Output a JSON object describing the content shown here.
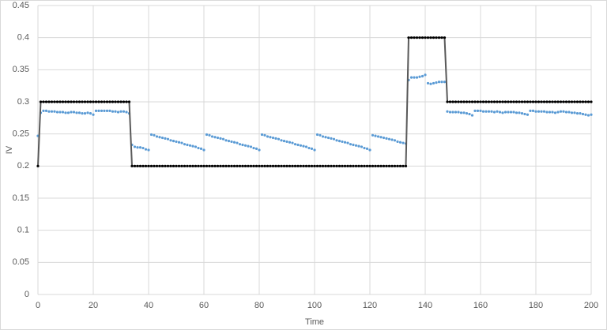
{
  "chart_data": {
    "type": "scatter-line",
    "x_label": "Time",
    "y_label": "IV",
    "xlim": [
      0,
      200
    ],
    "xticks": [
      0,
      20,
      40,
      60,
      80,
      100,
      120,
      140,
      160,
      180,
      200
    ],
    "ylim": [
      0,
      0.45
    ],
    "yticks": [
      0,
      0.05,
      0.1,
      0.15,
      0.2,
      0.25,
      0.3,
      0.35,
      0.4,
      0.45
    ],
    "grid": true,
    "x": [
      0,
      1,
      2,
      3,
      4,
      5,
      6,
      7,
      8,
      9,
      10,
      11,
      12,
      13,
      14,
      15,
      16,
      17,
      18,
      19,
      20,
      21,
      22,
      23,
      24,
      25,
      26,
      27,
      28,
      29,
      30,
      31,
      32,
      33,
      34,
      35,
      36,
      37,
      38,
      39,
      40,
      41,
      42,
      43,
      44,
      45,
      46,
      47,
      48,
      49,
      50,
      51,
      52,
      53,
      54,
      55,
      56,
      57,
      58,
      59,
      60,
      61,
      62,
      63,
      64,
      65,
      66,
      67,
      68,
      69,
      70,
      71,
      72,
      73,
      74,
      75,
      76,
      77,
      78,
      79,
      80,
      81,
      82,
      83,
      84,
      85,
      86,
      87,
      88,
      89,
      90,
      91,
      92,
      93,
      94,
      95,
      96,
      97,
      98,
      99,
      100,
      101,
      102,
      103,
      104,
      105,
      106,
      107,
      108,
      109,
      110,
      111,
      112,
      113,
      114,
      115,
      116,
      117,
      118,
      119,
      120,
      121,
      122,
      123,
      124,
      125,
      126,
      127,
      128,
      129,
      130,
      131,
      132,
      133,
      134,
      135,
      136,
      137,
      138,
      139,
      140,
      141,
      142,
      143,
      144,
      145,
      146,
      147,
      148,
      149,
      150,
      151,
      152,
      153,
      154,
      155,
      156,
      157,
      158,
      159,
      160,
      161,
      162,
      163,
      164,
      165,
      166,
      167,
      168,
      169,
      170,
      171,
      172,
      173,
      174,
      175,
      176,
      177,
      178,
      179,
      180,
      181,
      182,
      183,
      184,
      185,
      186,
      187,
      188,
      189,
      190,
      191,
      192,
      193,
      194,
      195,
      196,
      197,
      198,
      199,
      200
    ],
    "series": [
      {
        "color": "#5b9bd5",
        "line": false,
        "values": [
          0.247,
          0.283,
          0.286,
          0.286,
          0.285,
          0.285,
          0.285,
          0.284,
          0.284,
          0.284,
          0.283,
          0.283,
          0.284,
          0.284,
          0.283,
          0.283,
          0.282,
          0.282,
          0.283,
          0.282,
          0.28,
          0.286,
          0.286,
          0.286,
          0.286,
          0.286,
          0.286,
          0.285,
          0.285,
          0.284,
          0.285,
          0.285,
          0.284,
          0.282,
          0.233,
          0.23,
          0.229,
          0.229,
          0.228,
          0.226,
          0.225,
          0.249,
          0.248,
          0.246,
          0.245,
          0.244,
          0.243,
          0.242,
          0.24,
          0.239,
          0.238,
          0.237,
          0.236,
          0.234,
          0.233,
          0.232,
          0.231,
          0.23,
          0.228,
          0.227,
          0.225,
          0.249,
          0.248,
          0.246,
          0.245,
          0.244,
          0.243,
          0.242,
          0.24,
          0.239,
          0.238,
          0.237,
          0.236,
          0.234,
          0.233,
          0.232,
          0.231,
          0.23,
          0.228,
          0.227,
          0.225,
          0.249,
          0.248,
          0.246,
          0.245,
          0.244,
          0.243,
          0.242,
          0.24,
          0.239,
          0.238,
          0.237,
          0.236,
          0.234,
          0.233,
          0.232,
          0.231,
          0.23,
          0.228,
          0.227,
          0.225,
          0.249,
          0.248,
          0.246,
          0.245,
          0.244,
          0.243,
          0.242,
          0.24,
          0.239,
          0.238,
          0.237,
          0.236,
          0.234,
          0.233,
          0.232,
          0.231,
          0.23,
          0.228,
          0.227,
          0.225,
          0.248,
          0.247,
          0.246,
          0.245,
          0.244,
          0.243,
          0.242,
          0.241,
          0.24,
          0.238,
          0.237,
          0.236,
          0.235,
          0.334,
          0.338,
          0.338,
          0.338,
          0.339,
          0.34,
          0.342,
          0.329,
          0.328,
          0.329,
          0.33,
          0.331,
          0.331,
          0.331,
          0.285,
          0.284,
          0.284,
          0.284,
          0.284,
          0.283,
          0.283,
          0.282,
          0.281,
          0.279,
          0.286,
          0.286,
          0.286,
          0.285,
          0.285,
          0.285,
          0.285,
          0.284,
          0.285,
          0.284,
          0.283,
          0.284,
          0.284,
          0.284,
          0.284,
          0.283,
          0.283,
          0.282,
          0.281,
          0.28,
          0.286,
          0.286,
          0.285,
          0.285,
          0.285,
          0.285,
          0.284,
          0.284,
          0.284,
          0.283,
          0.284,
          0.285,
          0.285,
          0.284,
          0.284,
          0.283,
          0.283,
          0.282,
          0.282,
          0.281,
          0.28,
          0.279,
          0.28
        ]
      },
      {
        "color": "#000000",
        "line": true,
        "line_color": "#595959",
        "values": [
          0.2,
          0.3,
          0.3,
          0.3,
          0.3,
          0.3,
          0.3,
          0.3,
          0.3,
          0.3,
          0.3,
          0.3,
          0.3,
          0.3,
          0.3,
          0.3,
          0.3,
          0.3,
          0.3,
          0.3,
          0.3,
          0.3,
          0.3,
          0.3,
          0.3,
          0.3,
          0.3,
          0.3,
          0.3,
          0.3,
          0.3,
          0.3,
          0.3,
          0.3,
          0.2,
          0.2,
          0.2,
          0.2,
          0.2,
          0.2,
          0.2,
          0.2,
          0.2,
          0.2,
          0.2,
          0.2,
          0.2,
          0.2,
          0.2,
          0.2,
          0.2,
          0.2,
          0.2,
          0.2,
          0.2,
          0.2,
          0.2,
          0.2,
          0.2,
          0.2,
          0.2,
          0.2,
          0.2,
          0.2,
          0.2,
          0.2,
          0.2,
          0.2,
          0.2,
          0.2,
          0.2,
          0.2,
          0.2,
          0.2,
          0.2,
          0.2,
          0.2,
          0.2,
          0.2,
          0.2,
          0.2,
          0.2,
          0.2,
          0.2,
          0.2,
          0.2,
          0.2,
          0.2,
          0.2,
          0.2,
          0.2,
          0.2,
          0.2,
          0.2,
          0.2,
          0.2,
          0.2,
          0.2,
          0.2,
          0.2,
          0.2,
          0.2,
          0.2,
          0.2,
          0.2,
          0.2,
          0.2,
          0.2,
          0.2,
          0.2,
          0.2,
          0.2,
          0.2,
          0.2,
          0.2,
          0.2,
          0.2,
          0.2,
          0.2,
          0.2,
          0.2,
          0.2,
          0.2,
          0.2,
          0.2,
          0.2,
          0.2,
          0.2,
          0.2,
          0.2,
          0.2,
          0.2,
          0.2,
          0.2,
          0.4,
          0.4,
          0.4,
          0.4,
          0.4,
          0.4,
          0.4,
          0.4,
          0.4,
          0.4,
          0.4,
          0.4,
          0.4,
          0.4,
          0.3,
          0.3,
          0.3,
          0.3,
          0.3,
          0.3,
          0.3,
          0.3,
          0.3,
          0.3,
          0.3,
          0.3,
          0.3,
          0.3,
          0.3,
          0.3,
          0.3,
          0.3,
          0.3,
          0.3,
          0.3,
          0.3,
          0.3,
          0.3,
          0.3,
          0.3,
          0.3,
          0.3,
          0.3,
          0.3,
          0.3,
          0.3,
          0.3,
          0.3,
          0.3,
          0.3,
          0.3,
          0.3,
          0.3,
          0.3,
          0.3,
          0.3,
          0.3,
          0.3,
          0.3,
          0.3,
          0.3,
          0.3,
          0.3,
          0.3,
          0.3,
          0.3,
          0.3
        ]
      }
    ]
  }
}
